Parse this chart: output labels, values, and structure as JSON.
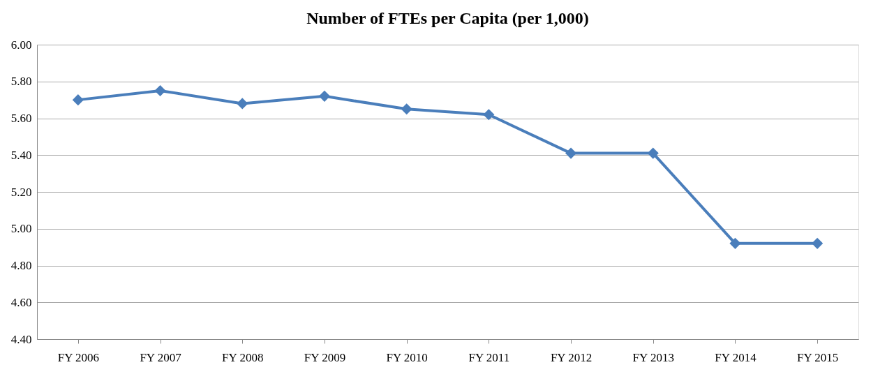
{
  "chart_data": {
    "type": "line",
    "title": "Number of FTEs per Capita (per 1,000)",
    "categories": [
      "FY 2006",
      "FY 2007",
      "FY 2008",
      "FY 2009",
      "FY 2010",
      "FY 2011",
      "FY 2012",
      "FY 2013",
      "FY 2014",
      "FY 2015"
    ],
    "series": [
      {
        "color": "#4a7ebb",
        "values": [
          5.7,
          5.75,
          5.68,
          5.72,
          5.65,
          5.62,
          5.41,
          5.41,
          4.92,
          4.92
        ]
      }
    ],
    "ylim": [
      4.4,
      6.0
    ],
    "yticks": [
      {
        "value": 4.4,
        "label": "4.40"
      },
      {
        "value": 4.6,
        "label": "4.60"
      },
      {
        "value": 4.8,
        "label": "4.80"
      },
      {
        "value": 5.0,
        "label": "5.00"
      },
      {
        "value": 5.2,
        "label": "5.20"
      },
      {
        "value": 5.4,
        "label": "5.40"
      },
      {
        "value": 5.6,
        "label": "5.60"
      },
      {
        "value": 5.8,
        "label": "5.80"
      },
      {
        "value": 6.0,
        "label": "6.00"
      }
    ],
    "grid": "y",
    "marker": "diamond",
    "line_style": "solid",
    "legend": false
  }
}
